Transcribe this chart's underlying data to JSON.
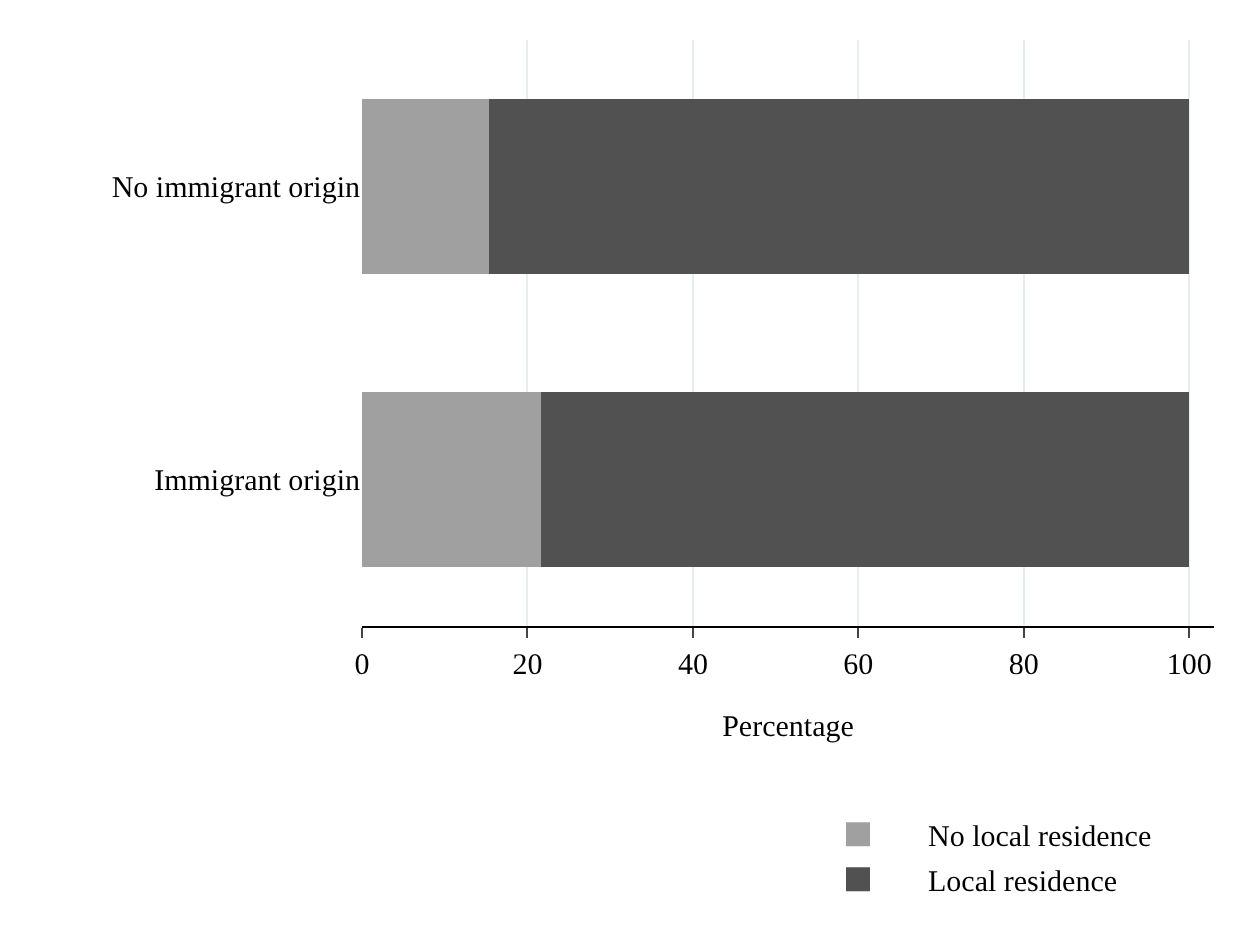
{
  "chart_data": {
    "type": "bar",
    "orientation": "horizontal",
    "stacked": true,
    "categories": [
      "No immigrant origin",
      "Immigrant origin"
    ],
    "series": [
      {
        "name": "No local residence",
        "color": "#a0a0a0",
        "values": [
          15.3,
          21.6
        ]
      },
      {
        "name": "Local residence",
        "color": "#515151",
        "values": [
          84.7,
          78.4
        ]
      }
    ],
    "xlabel": "Percentage",
    "xlim": [
      0,
      103
    ],
    "xticks": [
      0,
      20,
      40,
      60,
      80,
      100
    ],
    "grid": "x",
    "legend": "bottom"
  }
}
